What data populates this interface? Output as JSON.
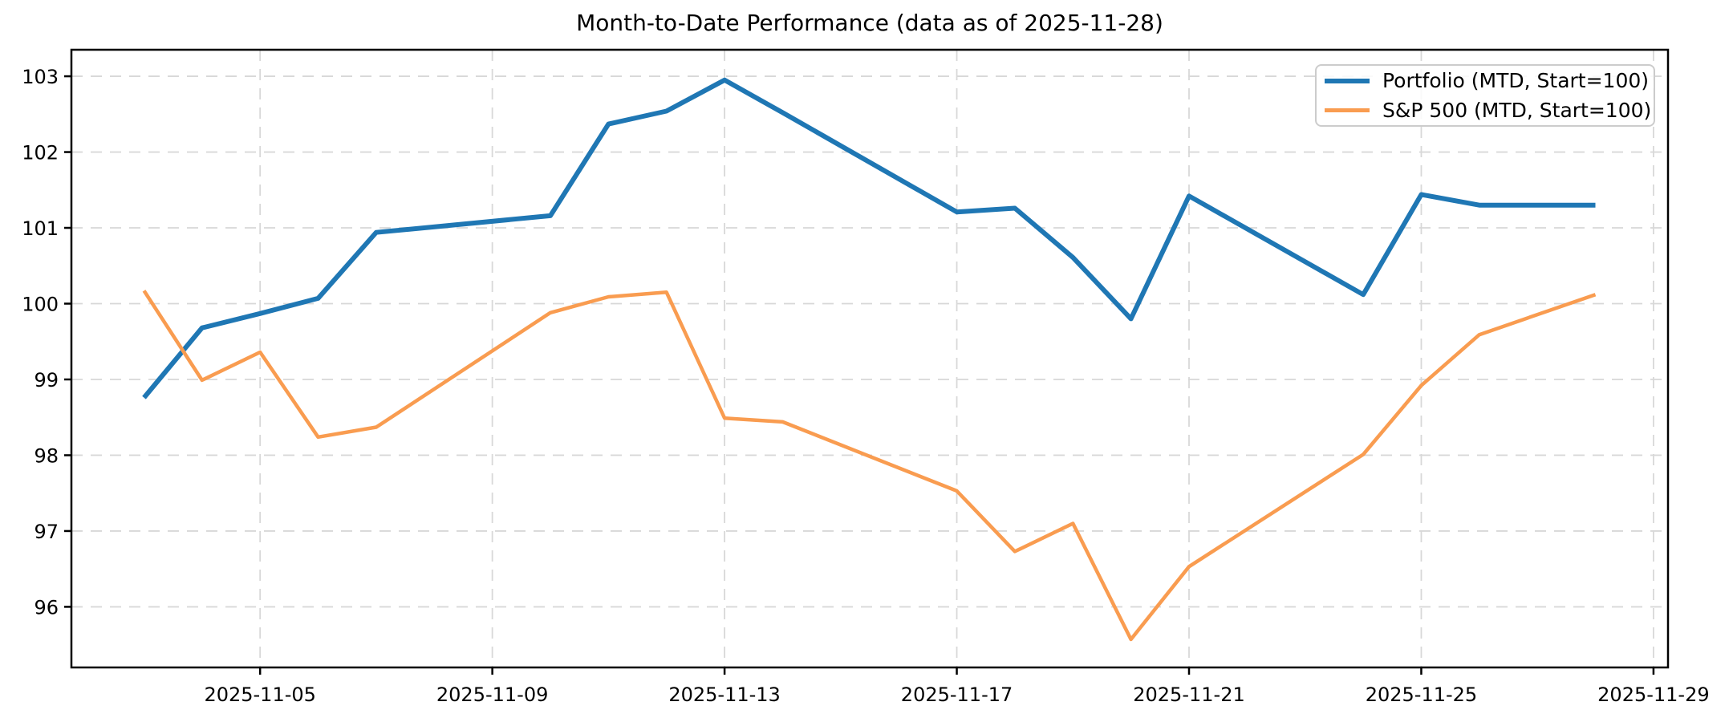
{
  "figure": {
    "background": "#ffffff"
  },
  "chart_data": {
    "type": "line",
    "title": "Month-to-Date Performance (data as of 2025-11-28)",
    "xlabel": "",
    "ylabel": "",
    "grid": true,
    "legend_position": "upper right",
    "x": [
      "2025-11-03",
      "2025-11-04",
      "2025-11-05",
      "2025-11-06",
      "2025-11-07",
      "2025-11-10",
      "2025-11-11",
      "2025-11-12",
      "2025-11-13",
      "2025-11-14",
      "2025-11-17",
      "2025-11-18",
      "2025-11-19",
      "2025-11-20",
      "2025-11-21",
      "2025-11-24",
      "2025-11-25",
      "2025-11-26",
      "2025-11-28"
    ],
    "series": [
      {
        "name": "Portfolio (MTD, Start=100)",
        "color": "#1f77b4",
        "line_width": 6,
        "values": [
          98.76,
          99.68,
          99.87,
          100.07,
          100.94,
          101.16,
          102.37,
          102.54,
          102.95,
          102.52,
          101.21,
          101.26,
          100.61,
          99.8,
          101.42,
          100.12,
          101.44,
          101.3,
          101.3
        ]
      },
      {
        "name": "S&P 500 (MTD, Start=100)",
        "color": "#f99c50",
        "line_width": 4.5,
        "values": [
          100.17,
          98.99,
          99.36,
          98.24,
          98.37,
          99.88,
          100.09,
          100.15,
          98.49,
          98.44,
          97.53,
          96.73,
          97.1,
          95.57,
          96.53,
          98.01,
          98.92,
          99.59,
          100.12
        ]
      }
    ],
    "x_tick_labels": [
      "2025-11-05",
      "2025-11-09",
      "2025-11-13",
      "2025-11-17",
      "2025-11-21",
      "2025-11-25",
      "2025-11-29"
    ],
    "y_tick_labels": [
      "96",
      "97",
      "98",
      "99",
      "100",
      "101",
      "102",
      "103"
    ],
    "xlim_days": [
      1.75,
      29.25
    ],
    "ylim": [
      95.2,
      103.35
    ]
  },
  "style": {
    "grid_color": "#d8d8d8",
    "spine_color": "#000000",
    "tick_color": "#000000",
    "legend_border": "#cccccc"
  }
}
